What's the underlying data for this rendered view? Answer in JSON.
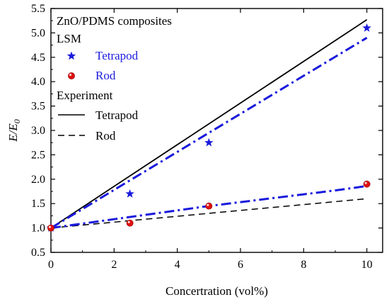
{
  "chart_data": {
    "type": "scatter",
    "xlabel": "Concertration (vol%)",
    "ylabel_main": "E/E",
    "ylabel_sub": "0",
    "xlim": [
      0,
      10.5
    ],
    "ylim": [
      0.5,
      5.5
    ],
    "xticks": [
      0,
      2,
      4,
      6,
      8,
      10
    ],
    "xtick_labels": [
      "0",
      "2",
      "4",
      "6",
      "8",
      "10"
    ],
    "yticks": [
      0.5,
      1.0,
      1.5,
      2.0,
      2.5,
      3.0,
      3.5,
      4.0,
      4.5,
      5.0,
      5.5
    ],
    "ytick_labels": [
      "0.5",
      "1.0",
      "1.5",
      "2.0",
      "2.5",
      "3.0",
      "3.5",
      "4.0",
      "4.5",
      "5.0",
      "5.5"
    ],
    "grid": false,
    "legend_position": "top-left",
    "legend": {
      "title": "ZnO/PDMS composites",
      "group1_heading": "LSM",
      "group2_heading": "Experiment",
      "entry_tetrapod_lsm": "Tetrapod",
      "entry_rod_lsm": "Rod",
      "entry_tetrapod_exp": "Tetrapod",
      "entry_rod_exp": "Rod"
    },
    "colors": {
      "blue": "#1a1adc",
      "marker_red": "#e01010",
      "black": "#000000"
    },
    "series": [
      {
        "name": "Tetrapod",
        "kind": "markers",
        "marker": "star",
        "x": [
          0,
          2.5,
          5,
          10
        ],
        "y": [
          1.0,
          1.7,
          2.75,
          5.1
        ]
      },
      {
        "name": "Rod",
        "kind": "markers",
        "marker": "circle",
        "x": [
          0,
          2.5,
          5,
          10
        ],
        "y": [
          1.0,
          1.1,
          1.45,
          1.9
        ]
      },
      {
        "name": "Tetrapod",
        "kind": "line",
        "style": "solid",
        "x": [
          0,
          10
        ],
        "y": [
          1.0,
          5.27
        ]
      },
      {
        "name": "Rod",
        "kind": "line",
        "style": "dashed",
        "x": [
          0,
          10
        ],
        "y": [
          1.0,
          1.6
        ]
      },
      {
        "kind": "line",
        "style": "dashdot",
        "x": [
          0,
          1,
          2,
          3,
          4,
          5,
          6,
          7,
          8,
          9,
          10
        ],
        "y": [
          1.0,
          1.39,
          1.78,
          2.17,
          2.56,
          2.95,
          3.34,
          3.73,
          4.12,
          4.51,
          4.9
        ]
      },
      {
        "kind": "line",
        "style": "dashdot",
        "x": [
          0,
          1,
          2,
          3,
          4,
          5,
          6,
          7,
          8,
          9,
          10
        ],
        "y": [
          1.0,
          1.09,
          1.18,
          1.27,
          1.36,
          1.45,
          1.53,
          1.61,
          1.69,
          1.77,
          1.86
        ]
      }
    ]
  }
}
